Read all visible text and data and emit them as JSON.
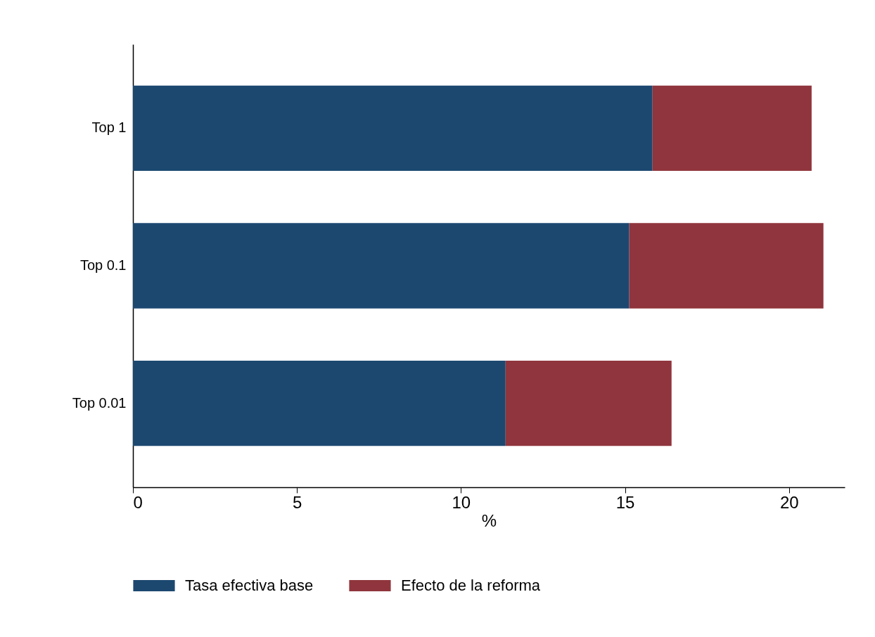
{
  "chart_data": {
    "type": "bar",
    "orientation": "horizontal",
    "stacked": true,
    "categories": [
      "Top 1",
      "Top 0.1",
      "Top 0.01"
    ],
    "series": [
      {
        "name": "Tasa efectiva base",
        "color": "#1c4870",
        "values": [
          15.84,
          15.13,
          11.36
        ]
      },
      {
        "name": "Efecto de la reforma",
        "color": "#90353d",
        "values": [
          4.85,
          5.92,
          5.06
        ]
      }
    ],
    "xlabel": "%",
    "xlim": [
      0,
      21.7
    ],
    "xticks": [
      0,
      5,
      10,
      15,
      20
    ],
    "grid": false,
    "legend": "bottom"
  }
}
